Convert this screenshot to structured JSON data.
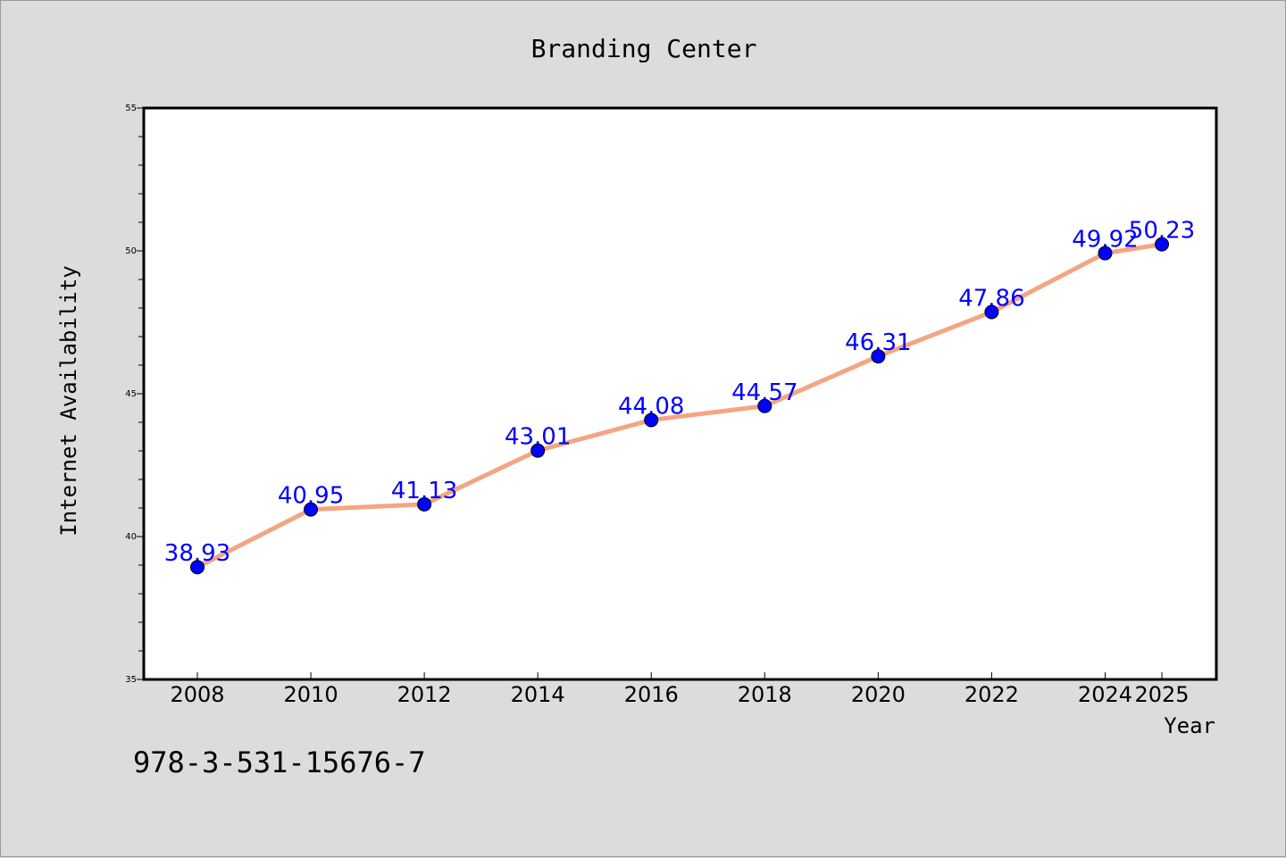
{
  "chart_data": {
    "type": "line",
    "title": "Branding Center",
    "xlabel": "Year",
    "ylabel": "Internet Availability",
    "categories": [
      "2008",
      "2010",
      "2012",
      "2014",
      "2016",
      "2018",
      "2020",
      "2022",
      "2024",
      "2025"
    ],
    "series": [
      {
        "values": [
          38.93,
          40.95,
          41.13,
          43.01,
          44.08,
          44.57,
          46.31,
          47.86,
          49.92,
          50.23
        ],
        "data_labels": [
          "38.93",
          "40.95",
          "41.13",
          "43.01",
          "44.08",
          "44.57",
          "46.31",
          "47.86",
          "49.92",
          "50.23"
        ],
        "line_color": "#f4a582",
        "marker_color": "#0000ff"
      }
    ],
    "ylim": [
      35,
      55
    ],
    "yticks": [
      35,
      40,
      45,
      50,
      55
    ],
    "grid": false,
    "legend": "none"
  },
  "footer": {
    "isbn": "978-3-531-15676-7"
  },
  "colors": {
    "background": "#dcdcdc",
    "plot_background": "#ffffff",
    "line": "#f4a582",
    "marker": "#0000ff",
    "data_label": "#0000ff"
  }
}
